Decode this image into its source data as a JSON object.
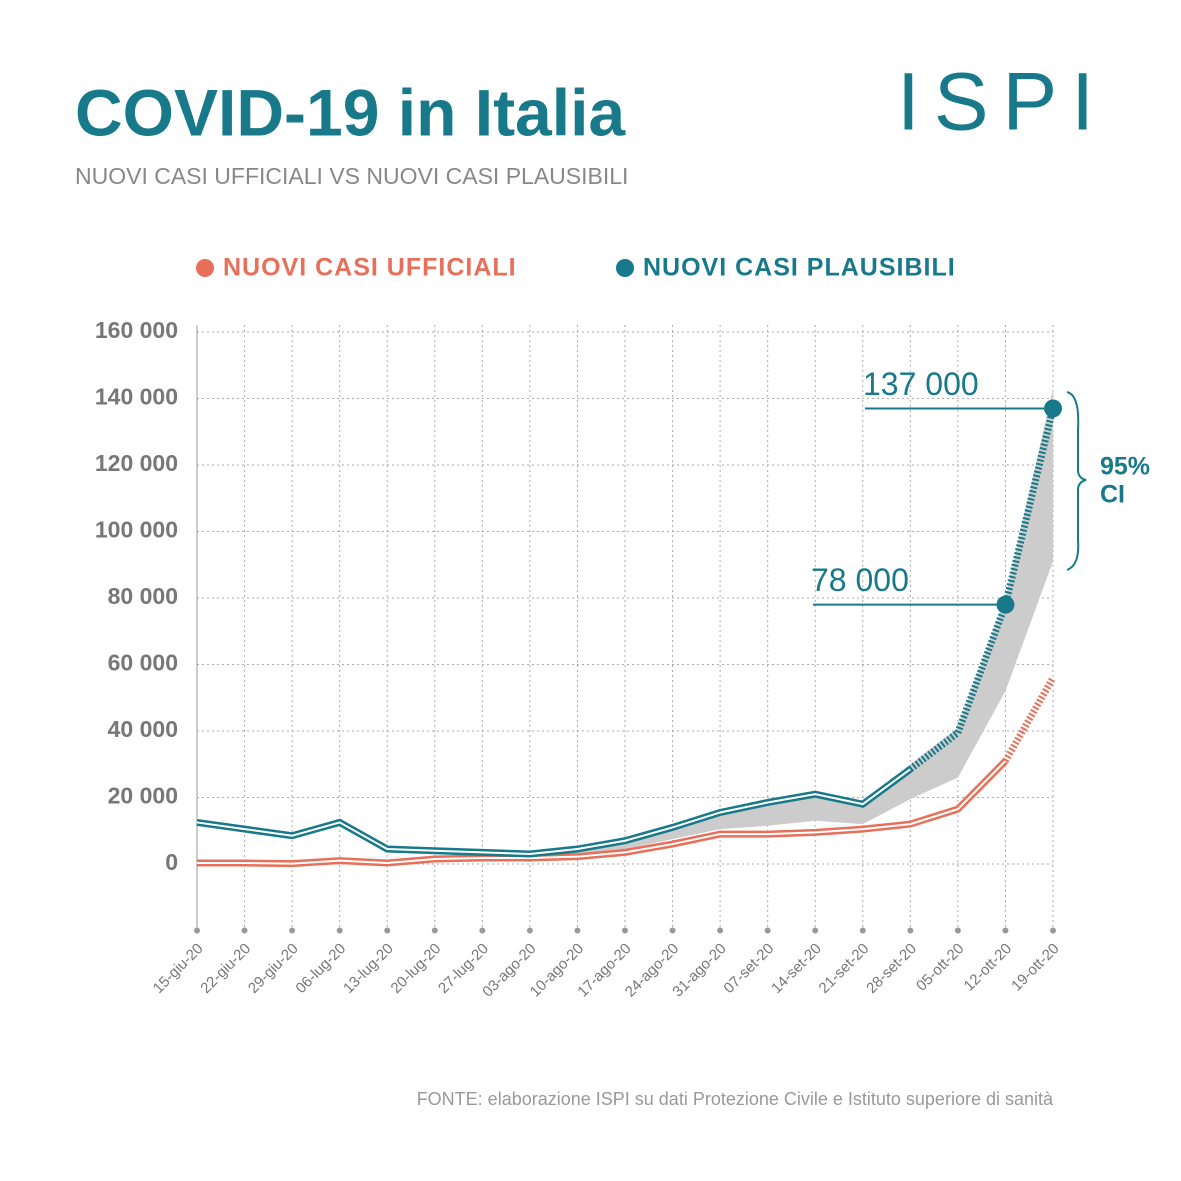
{
  "chart_data": {
    "type": "line",
    "title": "COVID-19 in Italia",
    "subtitle": "NUOVI CASI UFFICIALI VS NUOVI CASI PLAUSIBILI",
    "logo": "ISPI",
    "source": "FONTE: elaborazione ISPI su dati Protezione Civile e Istituto superiore di sanità",
    "categories": [
      "15-giu-20",
      "22-giu-20",
      "29-giu-20",
      "06-lug-20",
      "13-lug-20",
      "20-lug-20",
      "27-lug-20",
      "03-ago-20",
      "10-ago-20",
      "17-ago-20",
      "24-ago-20",
      "31-ago-20",
      "07-set-20",
      "14-set-20",
      "21-set-20",
      "28-set-20",
      "05-ott-20",
      "12-ott-20",
      "19-ott-20"
    ],
    "series": [
      {
        "name": "NUOVI CASI UFFICIALI",
        "color": "#e8705a",
        "dashed_from": "12-ott-20",
        "values": [
          300,
          300,
          100,
          1000,
          300,
          1500,
          1800,
          1800,
          2200,
          3500,
          6000,
          9000,
          9000,
          9500,
          10500,
          12000,
          16500,
          31000,
          56000
        ]
      },
      {
        "name": "NUOVI CASI PLAUSIBILI",
        "color": "#17798a",
        "dashed_from": "28-set-20",
        "values": [
          12500,
          10500,
          8500,
          12500,
          4500,
          4000,
          3500,
          3000,
          4500,
          7000,
          11000,
          15500,
          18500,
          21000,
          18000,
          28500,
          39500,
          78000,
          137000
        ]
      }
    ],
    "band": {
      "color": "#cccccc",
      "lower": [
        null,
        null,
        null,
        null,
        null,
        null,
        null,
        2500,
        3000,
        4500,
        7500,
        10500,
        11500,
        13000,
        12000,
        19500,
        26000,
        52000,
        91000
      ],
      "upper": [
        null,
        null,
        null,
        null,
        null,
        null,
        null,
        3500,
        5000,
        7500,
        11500,
        16000,
        19000,
        21500,
        18500,
        30000,
        41000,
        80000,
        143000
      ]
    },
    "ci_label": [
      "95%",
      "CI"
    ],
    "annotations": [
      {
        "text": "137 000",
        "series": 1,
        "index": 18
      },
      {
        "text": "78 000",
        "series": 1,
        "index": 17
      }
    ],
    "ylim": [
      -20000,
      160000
    ],
    "yticks": [
      0,
      {
        "value": 20000,
        "label": "20 000"
      },
      {
        "value": 40000,
        "label": "40 000"
      },
      {
        "value": 60000,
        "label": "60 000"
      },
      {
        "value": 80000,
        "label": "80 000"
      },
      {
        "value": 100000,
        "label": "100 000"
      },
      {
        "value": 120000,
        "label": "120 000"
      },
      {
        "value": 140000,
        "label": "140 000"
      },
      {
        "value": 160000,
        "label": "160 000"
      }
    ],
    "grid": true
  }
}
